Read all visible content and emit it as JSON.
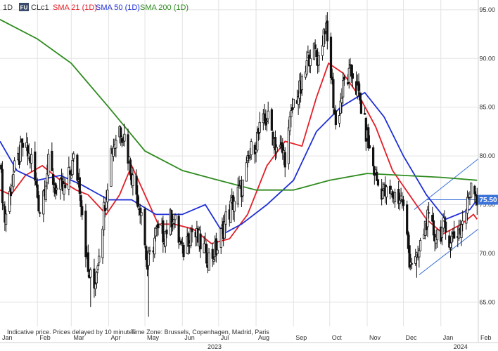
{
  "header": {
    "interval": "1D",
    "symbol_badge": "FU",
    "symbol": "CLc1",
    "indicators": [
      {
        "label": "SMA 21 (1D)",
        "color": "#e41e26"
      },
      {
        "label": "SMA 50 (1D)",
        "color": "#1f2fd6"
      },
      {
        "label": "SMA 200 (1D)",
        "color": "#2e8b1e"
      }
    ]
  },
  "footer": {
    "disclaimer": "Indicative price. Prices delayed by 10 minutes",
    "timezone": "Time Zone: Brussels, Copenhagen, Madrid, Paris"
  },
  "price_badge": "75.50",
  "colors": {
    "candles": "#111111",
    "sma21": "#e41e26",
    "sma50": "#1f2fd6",
    "sma200": "#2e8b1e",
    "trend": "#3b73d9",
    "badge": "#3b73d9",
    "grid": "#e3e3e3"
  },
  "chart_data": {
    "type": "candlestick",
    "title": "CLc1",
    "x_axis": {
      "months": [
        "Jan",
        "Feb",
        "Mar",
        "Apr",
        "May",
        "Jun",
        "Jul",
        "Aug",
        "Sep",
        "Oct",
        "Nov",
        "Dec",
        "Jan",
        "Feb"
      ],
      "year_labels": [
        "2023",
        "2024"
      ],
      "range": [
        "2023-01-01",
        "2024-02-01"
      ]
    },
    "y_axis": {
      "ticks": [
        "95.00",
        "90.00",
        "85.00",
        "80.00",
        "75.00",
        "70.00",
        "65.00"
      ],
      "range": [
        62.5,
        96
      ],
      "side": "right"
    },
    "grid": true,
    "price_points": [
      [
        "2023-01-01",
        79
      ],
      [
        "2023-01-05",
        73.5
      ],
      [
        "2023-01-12",
        78
      ],
      [
        "2023-01-20",
        81
      ],
      [
        "2023-01-27",
        79.5
      ],
      [
        "2023-02-03",
        74.5
      ],
      [
        "2023-02-10",
        79
      ],
      [
        "2023-02-17",
        76.5
      ],
      [
        "2023-02-24",
        76.5
      ],
      [
        "2023-03-03",
        79.5
      ],
      [
        "2023-03-08",
        77
      ],
      [
        "2023-03-15",
        68
      ],
      [
        "2023-03-20",
        66.5
      ],
      [
        "2023-03-27",
        73.5
      ],
      [
        "2023-04-03",
        80.5
      ],
      [
        "2023-04-10",
        83
      ],
      [
        "2023-04-14",
        82
      ],
      [
        "2023-04-21",
        77.5
      ],
      [
        "2023-04-28",
        74.5
      ],
      [
        "2023-05-03",
        68.5
      ],
      [
        "2023-05-10",
        72
      ],
      [
        "2023-05-17",
        72
      ],
      [
        "2023-05-24",
        74
      ],
      [
        "2023-06-01",
        70
      ],
      [
        "2023-06-08",
        72.5
      ],
      [
        "2023-06-16",
        71
      ],
      [
        "2023-06-23",
        69.5
      ],
      [
        "2023-06-30",
        70.5
      ],
      [
        "2023-07-07",
        73.5
      ],
      [
        "2023-07-14",
        75.5
      ],
      [
        "2023-07-21",
        77
      ],
      [
        "2023-07-28",
        80.5
      ],
      [
        "2023-08-04",
        82.5
      ],
      [
        "2023-08-10",
        84
      ],
      [
        "2023-08-18",
        81
      ],
      [
        "2023-08-25",
        80
      ],
      [
        "2023-09-01",
        85.5
      ],
      [
        "2023-09-08",
        87
      ],
      [
        "2023-09-15",
        91
      ],
      [
        "2023-09-22",
        90
      ],
      [
        "2023-09-27",
        93.5
      ],
      [
        "2023-10-02",
        88.5
      ],
      [
        "2023-10-06",
        83
      ],
      [
        "2023-10-13",
        87.5
      ],
      [
        "2023-10-20",
        88.5
      ],
      [
        "2023-10-27",
        85
      ],
      [
        "2023-11-03",
        80.5
      ],
      [
        "2023-11-10",
        77
      ],
      [
        "2023-11-17",
        76
      ],
      [
        "2023-11-24",
        76
      ],
      [
        "2023-11-30",
        75.5
      ],
      [
        "2023-12-06",
        69.5
      ],
      [
        "2023-12-12",
        69
      ],
      [
        "2023-12-20",
        73.5
      ],
      [
        "2023-12-27",
        72
      ],
      [
        "2024-01-03",
        72.5
      ],
      [
        "2024-01-10",
        71.5
      ],
      [
        "2024-01-17",
        72.5
      ],
      [
        "2024-01-23",
        75
      ],
      [
        "2024-01-26",
        77.5
      ],
      [
        "2024-01-29",
        77
      ],
      [
        "2024-01-31",
        75.5
      ]
    ],
    "lows": [
      [
        "2023-03-17",
        64.5
      ],
      [
        "2023-05-04",
        63.5
      ],
      [
        "2023-12-12",
        67.5
      ]
    ],
    "series": [
      {
        "name": "SMA 21 (1D)",
        "color": "#e41e26",
        "points": [
          [
            "2023-01-01",
            76.5
          ],
          [
            "2023-01-10",
            76
          ],
          [
            "2023-01-22",
            78
          ],
          [
            "2023-02-05",
            79
          ],
          [
            "2023-02-20",
            77.5
          ],
          [
            "2023-03-05",
            76.5
          ],
          [
            "2023-03-15",
            76
          ],
          [
            "2023-03-30",
            74
          ],
          [
            "2023-04-10",
            76
          ],
          [
            "2023-04-20",
            79
          ],
          [
            "2023-05-01",
            76
          ],
          [
            "2023-05-12",
            73
          ],
          [
            "2023-05-25",
            73
          ],
          [
            "2023-06-10",
            72.5
          ],
          [
            "2023-06-25",
            71
          ],
          [
            "2023-07-10",
            71.5
          ],
          [
            "2023-07-25",
            74
          ],
          [
            "2023-08-10",
            79
          ],
          [
            "2023-08-25",
            81.5
          ],
          [
            "2023-09-08",
            81
          ],
          [
            "2023-09-20",
            86
          ],
          [
            "2023-09-30",
            89.5
          ],
          [
            "2023-10-12",
            88.5
          ],
          [
            "2023-10-26",
            86
          ],
          [
            "2023-11-08",
            83
          ],
          [
            "2023-11-22",
            78.5
          ],
          [
            "2023-12-06",
            76
          ],
          [
            "2023-12-20",
            73.5
          ],
          [
            "2024-01-03",
            72
          ],
          [
            "2024-01-18",
            73
          ],
          [
            "2024-01-28",
            74
          ],
          [
            "2024-01-31",
            73.5
          ]
        ]
      },
      {
        "name": "SMA 50 (1D)",
        "color": "#1f2fd6",
        "points": [
          [
            "2023-01-01",
            81.5
          ],
          [
            "2023-01-15",
            78.5
          ],
          [
            "2023-02-01",
            77.5
          ],
          [
            "2023-02-20",
            78
          ],
          [
            "2023-03-10",
            77
          ],
          [
            "2023-04-01",
            75.5
          ],
          [
            "2023-04-20",
            75.5
          ],
          [
            "2023-05-10",
            74
          ],
          [
            "2023-06-01",
            74
          ],
          [
            "2023-06-20",
            75
          ],
          [
            "2023-07-05",
            72
          ],
          [
            "2023-07-20",
            73
          ],
          [
            "2023-08-10",
            75
          ],
          [
            "2023-09-01",
            77.5
          ],
          [
            "2023-09-20",
            82.5
          ],
          [
            "2023-10-10",
            85
          ],
          [
            "2023-10-30",
            86.5
          ],
          [
            "2023-11-15",
            84
          ],
          [
            "2023-12-01",
            80
          ],
          [
            "2023-12-20",
            76
          ],
          [
            "2024-01-05",
            73.5
          ],
          [
            "2024-01-25",
            74.5
          ],
          [
            "2024-01-31",
            75.5
          ]
        ]
      },
      {
        "name": "SMA 200 (1D)",
        "color": "#2e8b1e",
        "points": [
          [
            "2023-01-01",
            94
          ],
          [
            "2023-02-01",
            92
          ],
          [
            "2023-03-01",
            89.5
          ],
          [
            "2023-04-01",
            85
          ],
          [
            "2023-05-01",
            80.5
          ],
          [
            "2023-06-01",
            78.5
          ],
          [
            "2023-07-01",
            77.5
          ],
          [
            "2023-08-01",
            76.5
          ],
          [
            "2023-09-01",
            76.5
          ],
          [
            "2023-10-01",
            77.5
          ],
          [
            "2023-11-01",
            78.2
          ],
          [
            "2023-12-01",
            78
          ],
          [
            "2024-01-01",
            77.8
          ],
          [
            "2024-01-31",
            77.5
          ]
        ]
      }
    ],
    "trendlines": [
      {
        "from": [
          "2023-12-14",
          67.8
        ],
        "to": [
          "2024-02-01",
          72.5
        ]
      },
      {
        "from": [
          "2023-12-10",
          74.5
        ],
        "to": [
          "2024-02-01",
          79.7
        ]
      },
      {
        "from": [
          "2023-12-20",
          75.5
        ],
        "to": [
          "2024-01-31",
          75.5
        ]
      }
    ]
  }
}
